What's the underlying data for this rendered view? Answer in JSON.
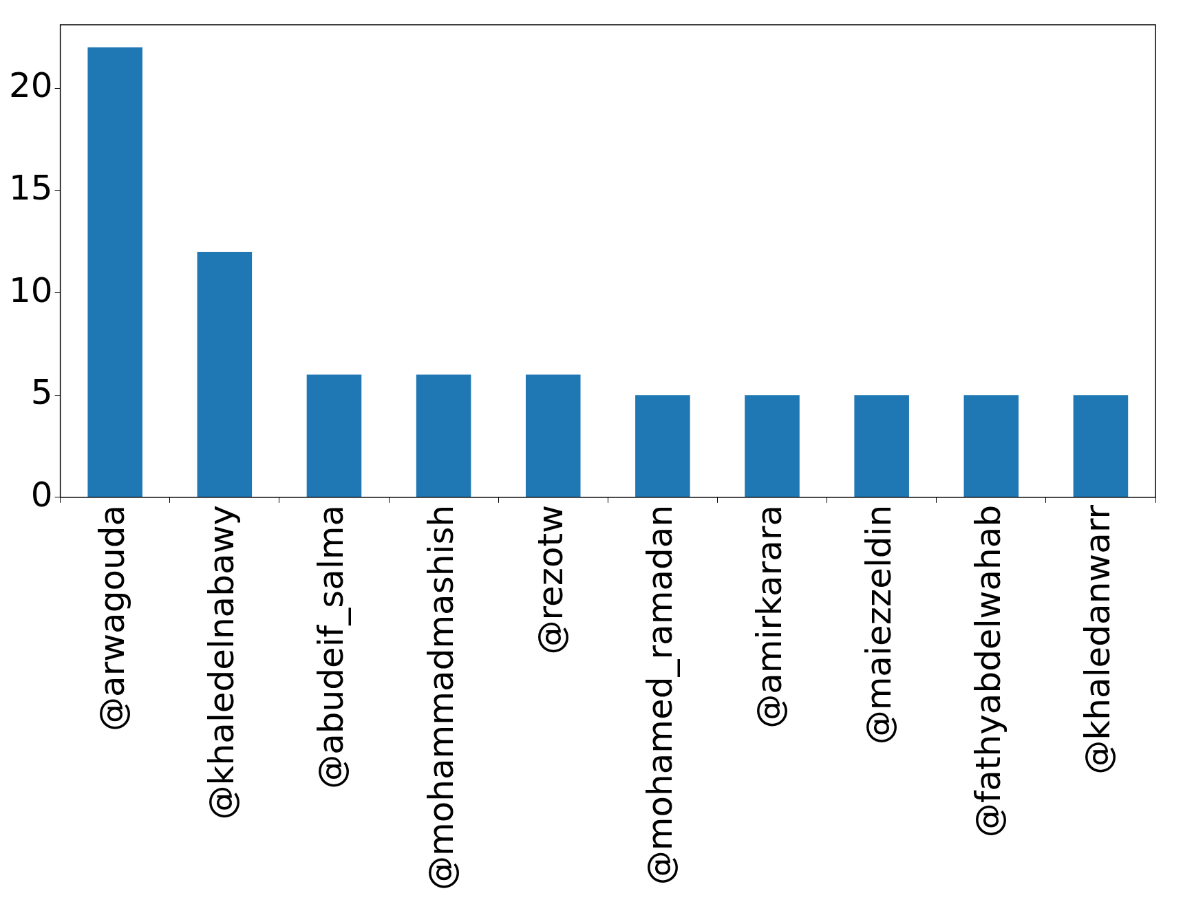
{
  "chart_data": {
    "type": "bar",
    "categories": [
      "@arwagouda",
      "@khaledelnabawy",
      "@abudeif_salma",
      "@mohammadmashish",
      "@rezotw",
      "@mohamed_ramadan",
      "@amirkarara",
      "@maiezzeldin",
      "@fathyabdelwahab",
      "@khaledanwarr"
    ],
    "values": [
      22,
      12,
      6,
      6,
      6,
      5,
      5,
      5,
      5,
      5
    ],
    "color": "#1f77b4",
    "ylim": [
      0,
      23.1
    ],
    "yticks": [
      0,
      5,
      10,
      15,
      20
    ],
    "grid": false,
    "legend": false
  }
}
